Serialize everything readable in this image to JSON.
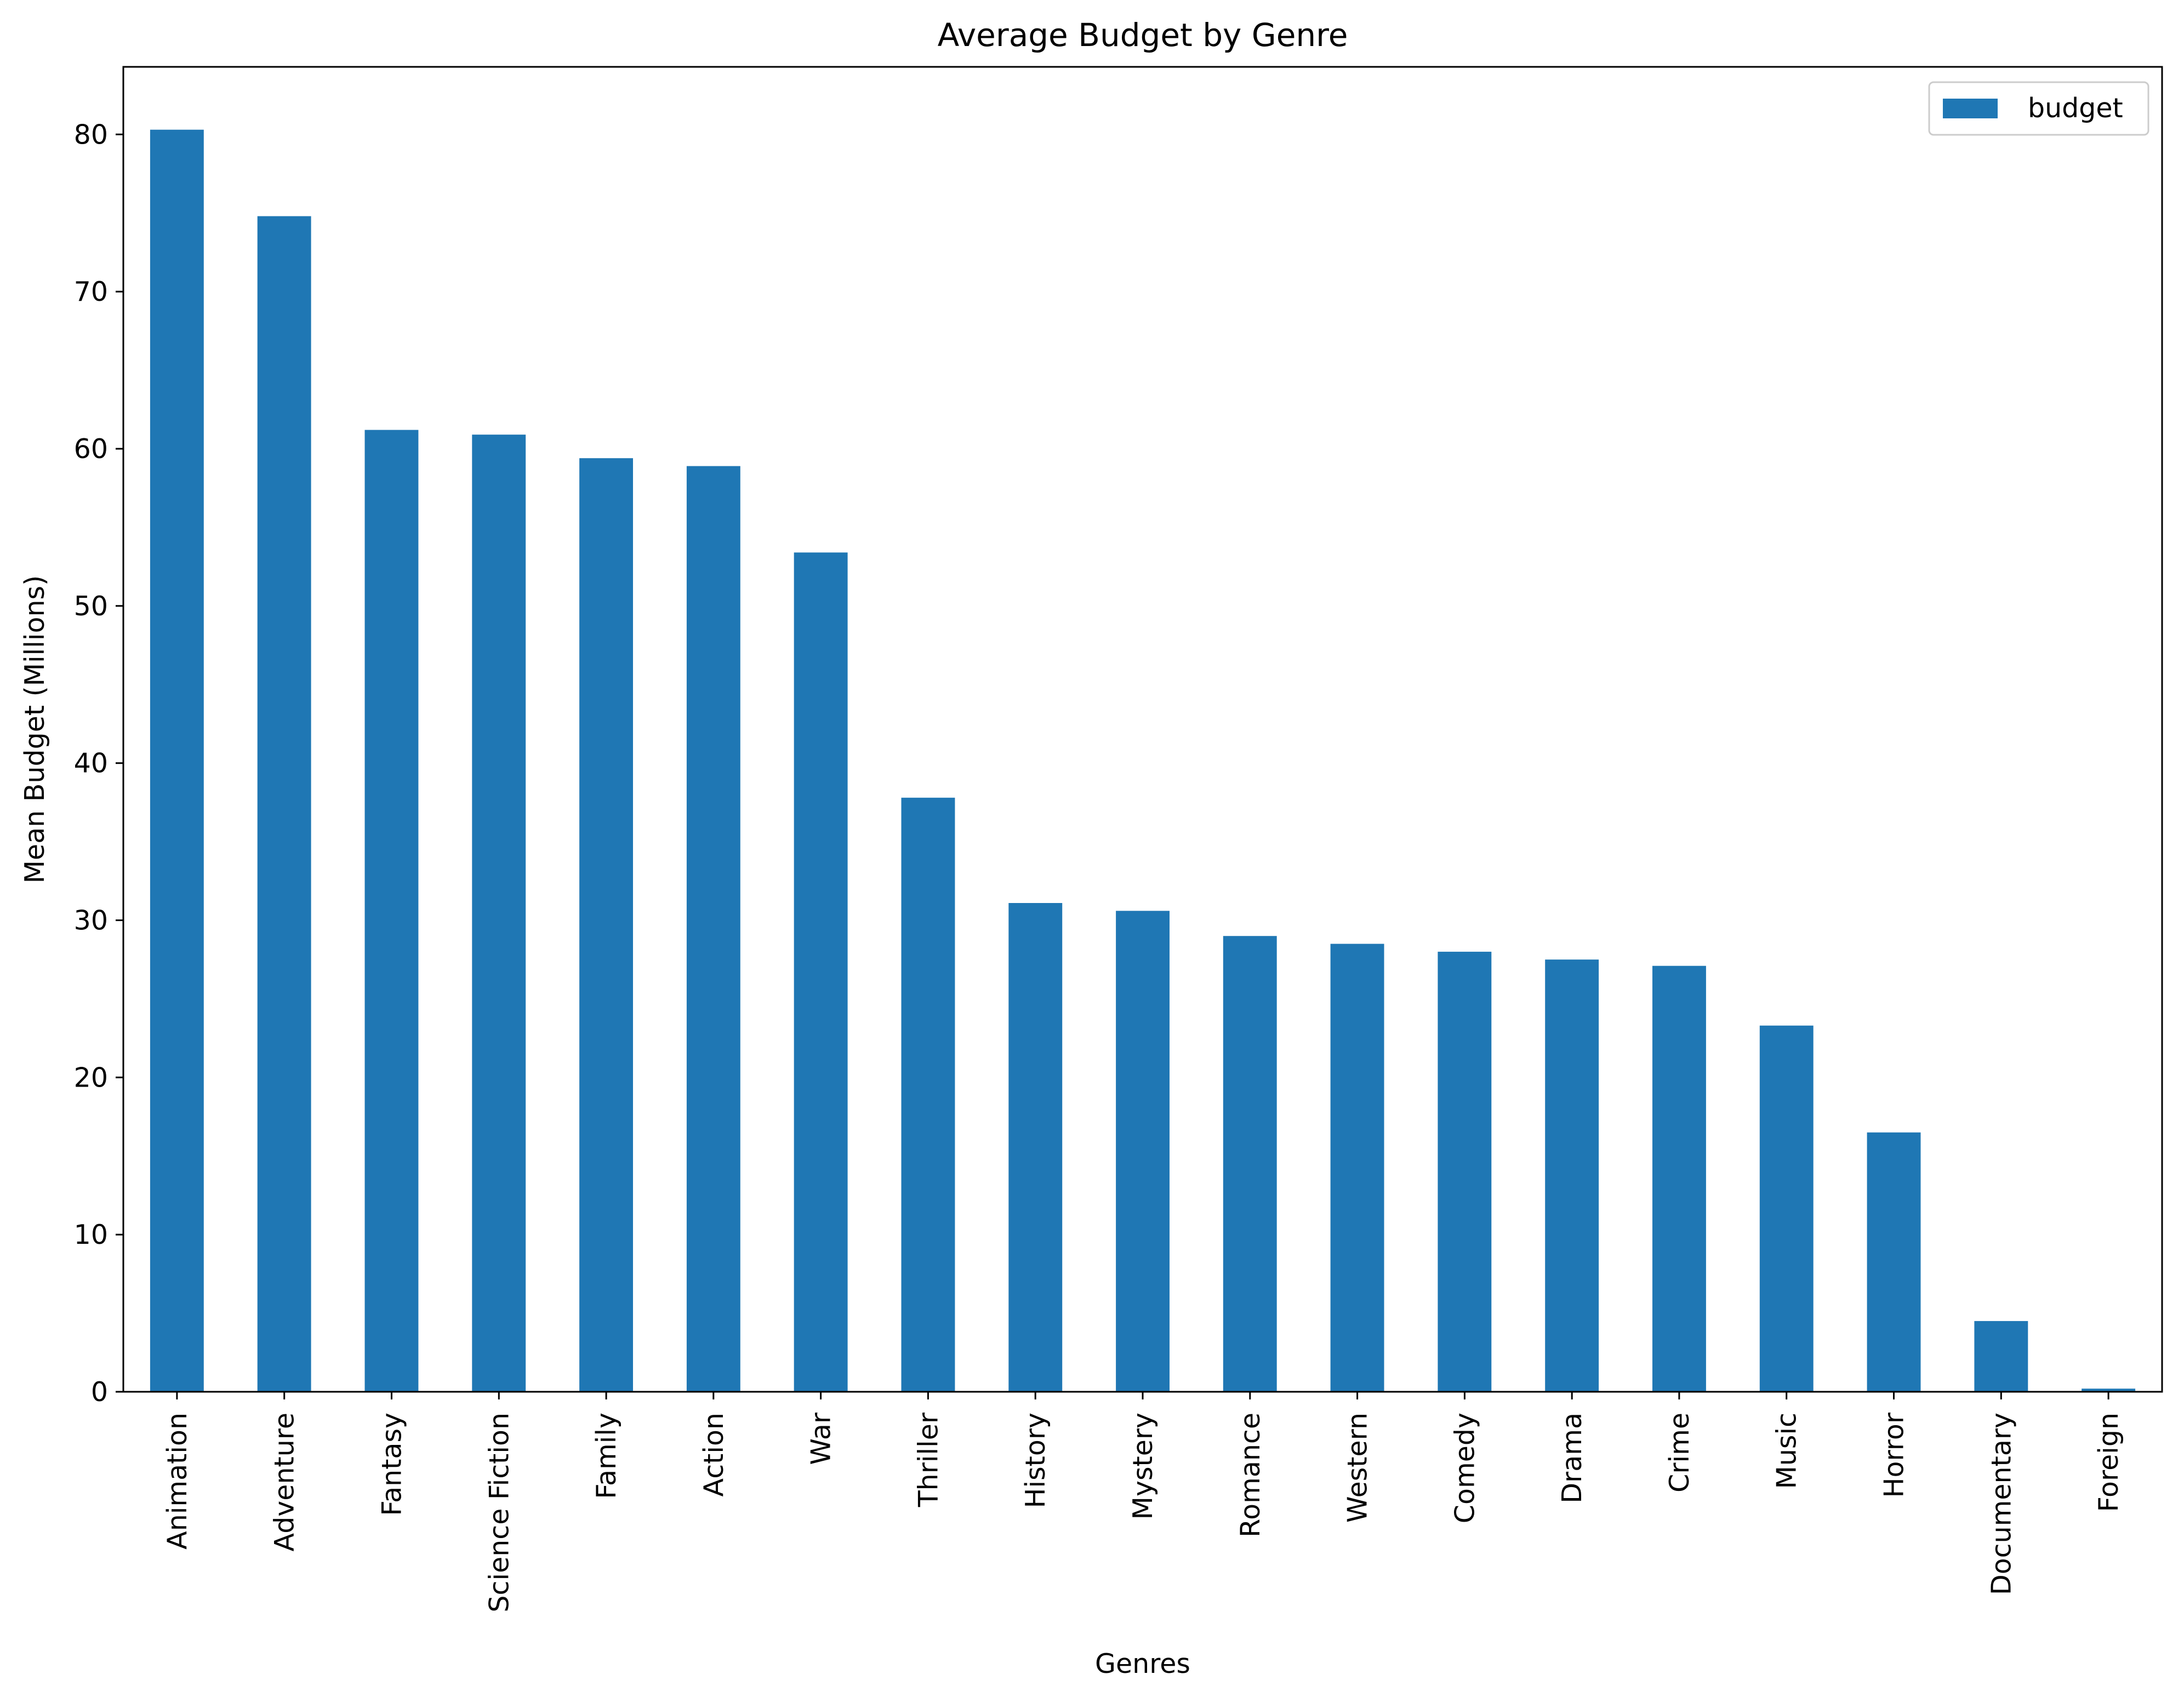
{
  "chart_data": {
    "type": "bar",
    "title": "Average Budget by Genre",
    "xlabel": "Genres",
    "ylabel": "Mean Budget (Millions)",
    "categories": [
      "Animation",
      "Adventure",
      "Fantasy",
      "Science Fiction",
      "Family",
      "Action",
      "War",
      "Thriller",
      "History",
      "Mystery",
      "Romance",
      "Western",
      "Comedy",
      "Drama",
      "Crime",
      "Music",
      "Horror",
      "Documentary",
      "Foreign"
    ],
    "series": [
      {
        "name": "budget",
        "color": "#1f77b4",
        "values": [
          80.3,
          74.8,
          61.2,
          60.9,
          59.4,
          58.9,
          53.4,
          37.8,
          31.1,
          30.6,
          29.0,
          28.5,
          28.0,
          27.5,
          27.1,
          23.3,
          16.5,
          4.5,
          0.2
        ]
      }
    ],
    "ylim": [
      0,
      84.3
    ],
    "yticks": [
      0,
      10,
      20,
      30,
      40,
      50,
      60,
      70,
      80
    ],
    "grid": false,
    "legend_position": "top-right",
    "bar_color": "#1f77b4"
  }
}
